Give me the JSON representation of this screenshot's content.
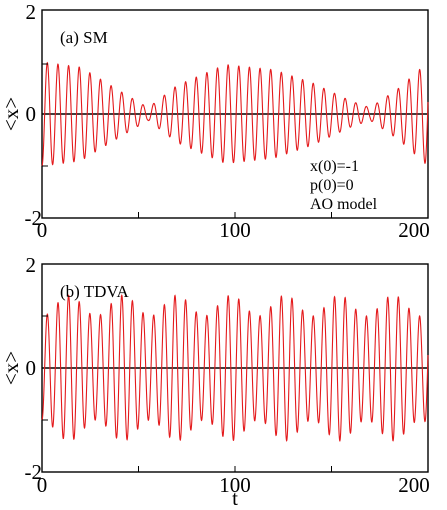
{
  "chart_data": [
    {
      "type": "line",
      "panel_label": "(b) TDVA",
      "xlabel": "t",
      "ylabel": "<x>",
      "xlim": [
        0,
        200
      ],
      "ylim": [
        -2,
        2
      ],
      "x_ticks": [
        "0",
        "100",
        "200"
      ],
      "y_ticks": [
        "2",
        "0",
        "-2"
      ],
      "reference_line_y": 0,
      "grid": false,
      "series": [
        {
          "color": "#e41a1c",
          "model": "oscillation_beat",
          "omega": 1.14,
          "amp_min": 1.0,
          "amp_max": 1.4,
          "beat_period": 28,
          "x": [
            0,
            2.75,
            5.5,
            8.25,
            11,
            13.75,
            16.5,
            19.25,
            22
          ],
          "values": [
            -1.0,
            1.1,
            -1.2,
            1.3,
            -1.4,
            1.4,
            -1.3,
            1.2,
            -1.1
          ]
        }
      ]
    },
    {
      "type": "line",
      "panel_label": "(a) SM",
      "xlabel": "",
      "ylabel": "<x>",
      "xlim": [
        0,
        200
      ],
      "ylim": [
        -2,
        2
      ],
      "x_ticks": [
        "0",
        "100",
        "200"
      ],
      "y_ticks": [
        "2",
        "0",
        "-2"
      ],
      "reference_line_y": 0,
      "grid": false,
      "annotation": [
        "x(0)=-1",
        "p(0)=0",
        "AO model"
      ],
      "series": [
        {
          "color": "#e41a1c",
          "model": "oscillation_envelope",
          "omega": 1.14,
          "x": [
            0,
            20,
            40,
            55,
            70,
            95,
            120,
            140,
            160,
            170,
            185,
            200
          ],
          "values": [
            1.0,
            0.9,
            0.45,
            0.12,
            0.55,
            0.95,
            0.85,
            0.6,
            0.25,
            0.12,
            0.5,
            1.0
          ]
        }
      ]
    }
  ]
}
